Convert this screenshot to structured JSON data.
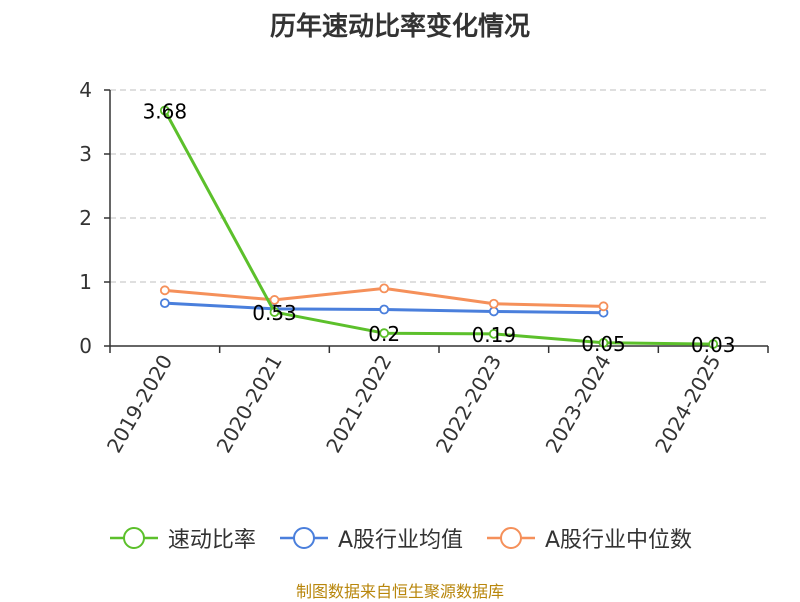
{
  "source": "制图数据来自恒生聚源数据库",
  "colors": {
    "axis": "#333333",
    "grid": "#cccccc",
    "text": "#333333"
  },
  "chart_data": {
    "type": "line",
    "title": "历年速动比率变化情况",
    "xlabel": "",
    "ylabel": "",
    "categories": [
      "2019-2020",
      "2020-2021",
      "2021-2022",
      "2022-2023",
      "2023-2024",
      "2024-2025"
    ],
    "ylim": [
      0,
      4
    ],
    "yticks": [
      "0",
      "1",
      "2",
      "3",
      "4"
    ],
    "grid": true,
    "legend_position": "bottom",
    "series": [
      {
        "name": "速动比率",
        "color": "#5cc02b",
        "values": [
          3.68,
          0.53,
          0.2,
          0.19,
          0.05,
          0.03
        ],
        "labels": [
          "3.68",
          "0.53",
          "0.2",
          "0.19",
          "0.05",
          "0.03"
        ]
      },
      {
        "name": "A股行业均值",
        "color": "#4a7fdc",
        "values": [
          0.67,
          0.58,
          0.57,
          0.54,
          0.52,
          null
        ]
      },
      {
        "name": "A股行业中位数",
        "color": "#f5905a",
        "values": [
          0.87,
          0.72,
          0.9,
          0.66,
          0.62,
          null
        ]
      }
    ]
  }
}
